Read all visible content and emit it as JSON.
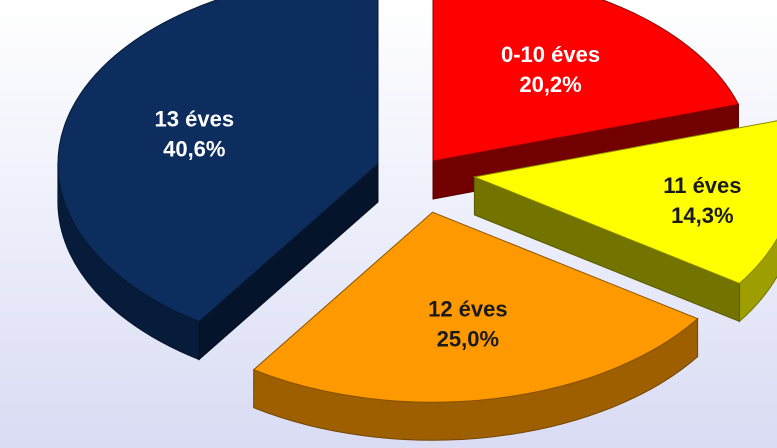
{
  "chart_data": {
    "type": "pie",
    "style": "3d-exploded",
    "categories": [
      "0-10 éves",
      "11 éves",
      "12 éves",
      "13 éves"
    ],
    "values": [
      20.2,
      14.3,
      25.0,
      40.6
    ],
    "value_labels": [
      "20,2%",
      "14,3%",
      "25,0%",
      "40,6%"
    ],
    "colors": [
      "#ff0000",
      "#ffff00",
      "#ff9900",
      "#0c2d5e"
    ],
    "label_colors": [
      "#ffffff",
      "#1a1a1a",
      "#1a1a1a",
      "#ffffff"
    ],
    "title": "",
    "legend": "none"
  }
}
